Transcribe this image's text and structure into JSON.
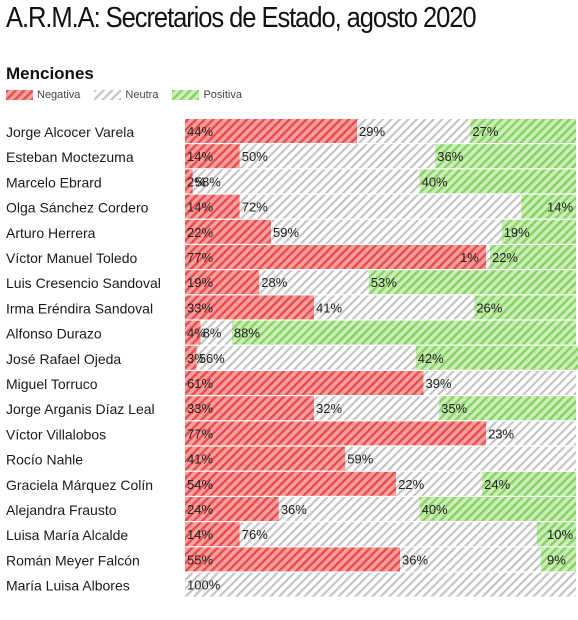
{
  "title": "A.R.M.A: Secretarios de Estado, agosto 2020",
  "subtitle": "Menciones",
  "legend": [
    {
      "label": "Negativa",
      "color": "#f25c5c"
    },
    {
      "label": "Neutra",
      "color": "#bdbdbd"
    },
    {
      "label": "Positiva",
      "color": "#7fce5a"
    }
  ],
  "chart_data": {
    "type": "bar",
    "stacked": true,
    "orientation": "horizontal",
    "percent": true,
    "categories": [
      "Jorge Alcocer Varela",
      "Esteban Moctezuma",
      "Marcelo Ebrard",
      "Olga Sánchez Cordero",
      "Arturo Herrera",
      "Víctor Manuel Toledo",
      "Luis Cresencio Sandoval",
      "Irma Eréndira Sandoval",
      "Alfonso Durazo",
      "José Rafael Ojeda",
      "Miguel Torruco",
      "Jorge Arganis Díaz Leal",
      "Víctor Villalobos",
      "Rocío Nahle",
      "Graciela Márquez Colín",
      "Alejandra Frausto",
      "Luisa María Alcalde",
      "Román Meyer Falcón",
      "María Luisa Albores"
    ],
    "series": [
      {
        "name": "Negativa",
        "color": "#f25c5c",
        "values": [
          44,
          14,
          2,
          14,
          22,
          77,
          19,
          33,
          4,
          3,
          61,
          33,
          77,
          41,
          54,
          24,
          14,
          55,
          0
        ]
      },
      {
        "name": "Neutra",
        "color": "#bdbdbd",
        "values": [
          29,
          50,
          58,
          72,
          59,
          1,
          28,
          41,
          8,
          56,
          39,
          32,
          23,
          59,
          22,
          36,
          76,
          36,
          100
        ]
      },
      {
        "name": "Positiva",
        "color": "#7fce5a",
        "values": [
          27,
          36,
          40,
          14,
          19,
          22,
          53,
          26,
          88,
          42,
          0,
          35,
          0,
          0,
          24,
          40,
          10,
          9,
          0
        ]
      }
    ],
    "xlim": [
      0,
      100
    ]
  }
}
